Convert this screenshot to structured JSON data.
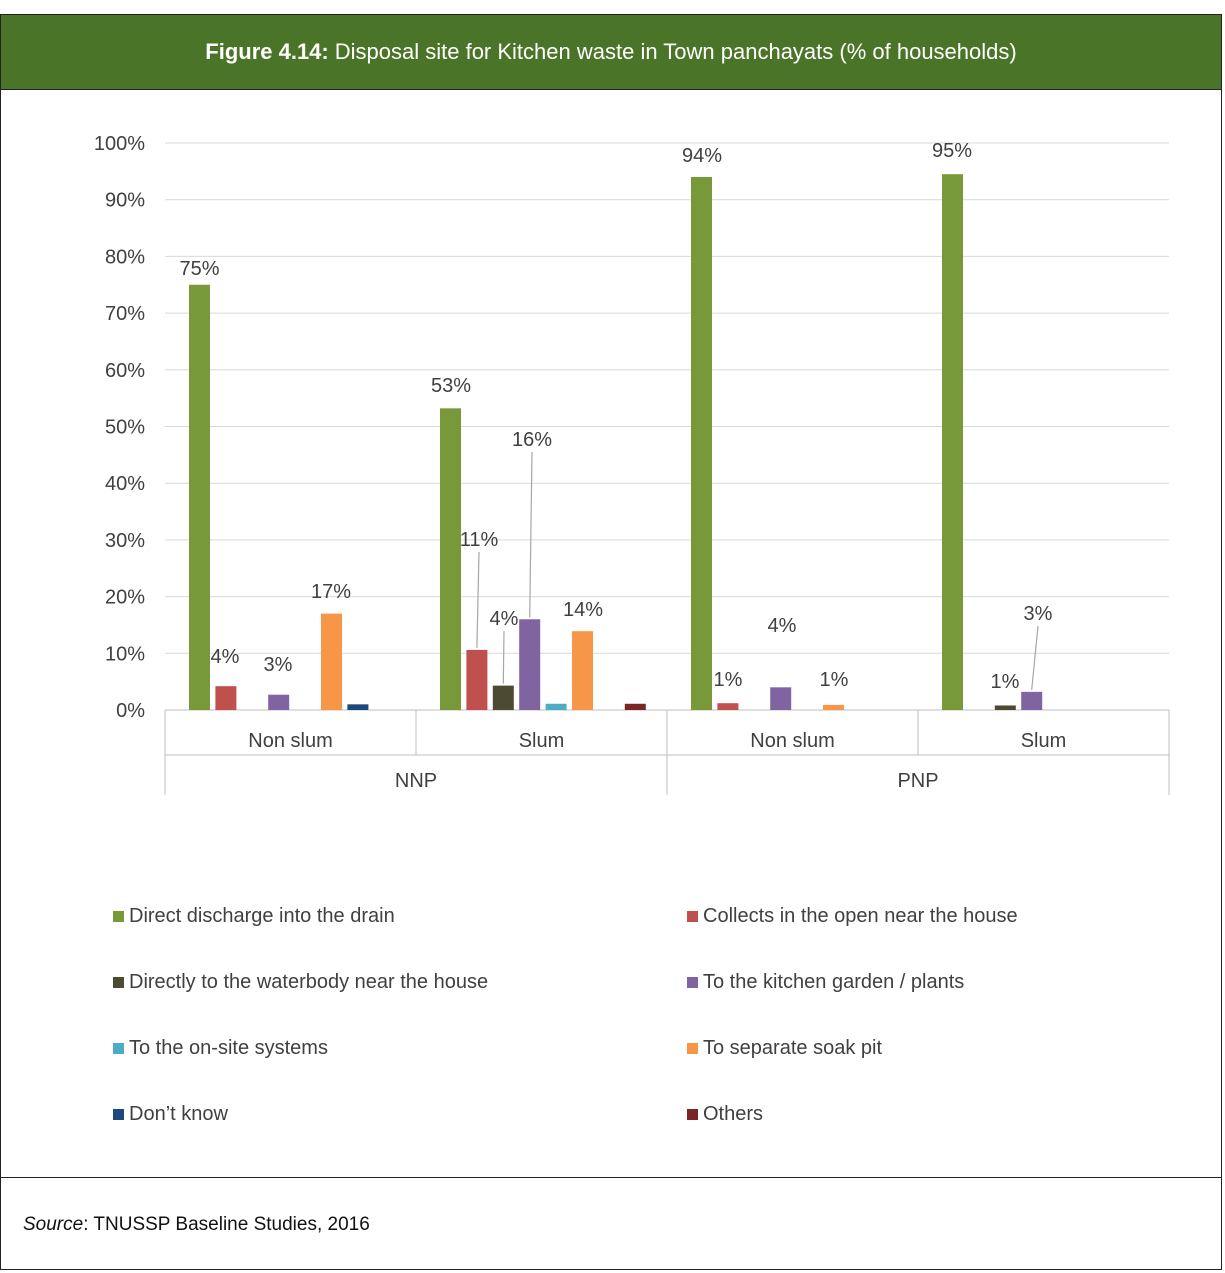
{
  "figure": {
    "label": "Figure 4.14:",
    "title": "Disposal site for Kitchen waste in Town panchayats (% of households)"
  },
  "source": {
    "prefix": "Source",
    "text": ": TNUSSP Baseline Studies, 2016"
  },
  "chart_data": {
    "type": "bar",
    "ylim": [
      0,
      100
    ],
    "y_ticks": [
      "0%",
      "10%",
      "20%",
      "30%",
      "40%",
      "50%",
      "60%",
      "70%",
      "80%",
      "90%",
      "100%"
    ],
    "grid": true,
    "legend_position": "bottom",
    "groups": [
      "NNP",
      "PNP"
    ],
    "categories": [
      "Non slum",
      "Slum",
      "Non slum",
      "Slum"
    ],
    "series": [
      {
        "name": "Direct discharge into the drain",
        "color": "#77993a",
        "values": [
          75,
          53.2,
          94,
          94.5
        ],
        "labels": [
          "75%",
          "53%",
          "94%",
          "95%"
        ]
      },
      {
        "name": "Collects in the open near the house",
        "color": "#c0504d",
        "values": [
          4.2,
          10.6,
          1.2,
          0
        ],
        "labels": [
          "4%",
          "11%",
          "1%",
          ""
        ]
      },
      {
        "name": "Directly to the waterbody near the house",
        "color": "#4d4a33",
        "values": [
          0,
          4.3,
          0,
          0.8
        ],
        "labels": [
          "",
          "4%",
          "",
          "1%"
        ]
      },
      {
        "name": "To the kitchen garden / plants",
        "color": "#8064a2",
        "values": [
          2.7,
          16,
          4,
          3.2
        ],
        "labels": [
          "3%",
          "16%",
          "4%",
          "3%"
        ]
      },
      {
        "name": "To the on-site systems",
        "color": "#4bacc6",
        "values": [
          0,
          1.1,
          0,
          0
        ],
        "labels": [
          "",
          "",
          "",
          ""
        ]
      },
      {
        "name": "To separate soak pit",
        "color": "#f79646",
        "values": [
          17,
          13.9,
          0.9,
          0
        ],
        "labels": [
          "17%",
          "14%",
          "1%",
          ""
        ]
      },
      {
        "name": "Don’t know",
        "color": "#1f497d",
        "values": [
          1,
          0,
          0,
          0
        ],
        "labels": [
          "",
          "",
          "",
          ""
        ]
      },
      {
        "name": "Others",
        "color": "#7b2626",
        "values": [
          0,
          1.1,
          0,
          0
        ],
        "labels": [
          "",
          "",
          "",
          ""
        ]
      }
    ]
  }
}
